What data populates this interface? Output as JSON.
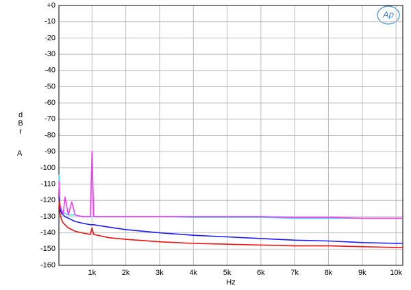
{
  "chart_data": {
    "type": "line",
    "logo": "Ap",
    "y_label": "dBr",
    "y_unit": "A",
    "x_label": "Hz",
    "xlim": [
      20,
      10200
    ],
    "ylim": [
      -160,
      0
    ],
    "xticks": [
      {
        "value": 1000,
        "label": "1k"
      },
      {
        "value": 2000,
        "label": "2k"
      },
      {
        "value": 3000,
        "label": "3k"
      },
      {
        "value": 4000,
        "label": "4k"
      },
      {
        "value": 5000,
        "label": "5k"
      },
      {
        "value": 6000,
        "label": "6k"
      },
      {
        "value": 7000,
        "label": "7k"
      },
      {
        "value": 8000,
        "label": "8k"
      },
      {
        "value": 9000,
        "label": "9k"
      },
      {
        "value": 10000,
        "label": "10k"
      }
    ],
    "yticks": [
      {
        "value": 0,
        "label": "+0"
      },
      -10,
      -20,
      -30,
      -40,
      -50,
      -60,
      -70,
      -80,
      -90,
      -100,
      -110,
      -120,
      -130,
      -140,
      -150,
      -160
    ],
    "grid": true,
    "x": [
      20,
      50,
      100,
      150,
      200,
      300,
      400,
      500,
      700,
      950,
      1000,
      1050,
      1500,
      2000,
      3000,
      4000,
      5000,
      6000,
      7000,
      8000,
      9000,
      10000,
      10200
    ],
    "series": [
      {
        "color": "#33e3e3",
        "values": [
          -104,
          -122,
          -126,
          -127,
          -128,
          -129,
          -129,
          -129,
          -130,
          -130,
          -130,
          -130,
          -130,
          -130,
          -130,
          -130.5,
          -130.5,
          -130.5,
          -131,
          -131,
          -131,
          -131,
          -131
        ]
      },
      {
        "color": "#ff33ff",
        "values": [
          -108,
          -123,
          -127,
          -128,
          -118,
          -129,
          -121,
          -129,
          -130,
          -130,
          -90,
          -130,
          -130,
          -130,
          -130,
          -130,
          -130,
          -130,
          -130.5,
          -130.5,
          -131,
          -131,
          -131
        ]
      },
      {
        "color": "#1a1aff",
        "values": [
          -118,
          -125,
          -128,
          -129,
          -130,
          -131,
          -132,
          -133,
          -134,
          -135,
          -135,
          -135,
          -136.5,
          -138,
          -140,
          -141.5,
          -142.5,
          -143.5,
          -144.5,
          -145,
          -146,
          -146.5,
          -146.5
        ]
      },
      {
        "color": "#ee1111",
        "values": [
          -120,
          -128,
          -132,
          -134,
          -135,
          -137,
          -138,
          -139,
          -140,
          -141,
          -137,
          -141,
          -143,
          -144,
          -145.5,
          -146.5,
          -147,
          -147.5,
          -148,
          -148,
          -148.5,
          -149,
          -149
        ]
      }
    ]
  }
}
